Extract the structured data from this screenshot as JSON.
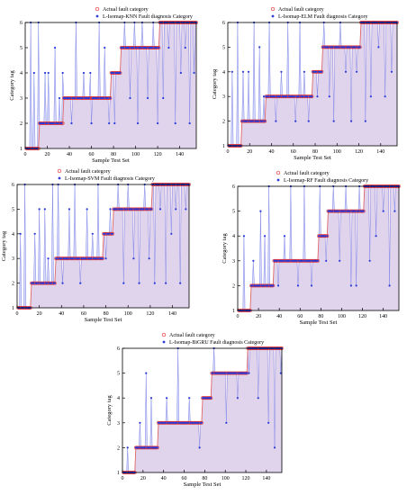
{
  "chart_data": [
    {
      "type": "scatter",
      "xlabel": "Sample Test Set",
      "ylabel": "Category tag",
      "xlim": [
        0,
        155
      ],
      "ylim": [
        1,
        6
      ],
      "xticks": [
        0,
        20,
        40,
        60,
        80,
        100,
        120,
        140
      ],
      "yticks": [
        1,
        2,
        3,
        4,
        5,
        6
      ],
      "legend_position": "top",
      "series": [
        {
          "name": "Actual fault category",
          "marker": "circle-open",
          "color": "#e03030",
          "segments": [
            [
              1,
              12,
              1
            ],
            [
              13,
              34,
              2
            ],
            [
              35,
              77,
              3
            ],
            [
              78,
              86,
              4
            ],
            [
              87,
              121,
              5
            ],
            [
              122,
              155,
              6
            ]
          ]
        },
        {
          "name": "L-Isomap-KNN Fault diagnosis Category",
          "marker": "dot",
          "color": "#2a3bd8",
          "errors": [
            [
              5,
              6
            ],
            [
              8,
              4
            ],
            [
              12,
              6
            ],
            [
              18,
              4
            ],
            [
              21,
              4
            ],
            [
              27,
              5
            ],
            [
              31,
              3
            ],
            [
              34,
              4
            ],
            [
              42,
              2
            ],
            [
              46,
              6
            ],
            [
              53,
              4
            ],
            [
              59,
              4
            ],
            [
              60,
              2
            ],
            [
              67,
              6
            ],
            [
              72,
              5
            ],
            [
              76,
              2
            ],
            [
              81,
              2
            ],
            [
              90,
              6
            ],
            [
              95,
              3
            ],
            [
              99,
              6
            ],
            [
              102,
              2
            ],
            [
              106,
              6
            ],
            [
              111,
              3
            ],
            [
              116,
              6
            ],
            [
              120,
              2
            ],
            [
              125,
              3
            ],
            [
              130,
              5
            ],
            [
              136,
              2
            ],
            [
              141,
              4
            ],
            [
              145,
              5
            ],
            [
              149,
              2
            ],
            [
              153,
              4
            ]
          ]
        }
      ]
    },
    {
      "type": "scatter",
      "xlabel": "Sample Test Set",
      "ylabel": "Category tag",
      "xlim": [
        0,
        155
      ],
      "ylim": [
        1,
        6
      ],
      "xticks": [
        0,
        20,
        40,
        60,
        80,
        100,
        120,
        140
      ],
      "yticks": [
        1,
        2,
        3,
        4,
        5,
        6
      ],
      "legend_position": "top",
      "series": [
        {
          "name": "Actual fault category",
          "marker": "circle-open",
          "color": "#e03030",
          "segments": [
            [
              1,
              12,
              1
            ],
            [
              13,
              34,
              2
            ],
            [
              35,
              77,
              3
            ],
            [
              78,
              86,
              4
            ],
            [
              87,
              121,
              5
            ],
            [
              122,
              155,
              6
            ]
          ]
        },
        {
          "name": "L-Isomap-ELM Fault diagnosis Category",
          "marker": "dot",
          "color": "#2a3bd8",
          "errors": [
            [
              4,
              4
            ],
            [
              9,
              6
            ],
            [
              14,
              4
            ],
            [
              19,
              4
            ],
            [
              24,
              6
            ],
            [
              29,
              5
            ],
            [
              33,
              3
            ],
            [
              38,
              6
            ],
            [
              44,
              2
            ],
            [
              49,
              4
            ],
            [
              55,
              6
            ],
            [
              62,
              2
            ],
            [
              66,
              6
            ],
            [
              70,
              4
            ],
            [
              74,
              2
            ],
            [
              82,
              3
            ],
            [
              88,
              6
            ],
            [
              93,
              3
            ],
            [
              97,
              2
            ],
            [
              103,
              6
            ],
            [
              108,
              4
            ],
            [
              113,
              2
            ],
            [
              118,
              4
            ],
            [
              126,
              2
            ],
            [
              131,
              3
            ],
            [
              138,
              5
            ],
            [
              144,
              3
            ],
            [
              150,
              4
            ]
          ]
        }
      ]
    },
    {
      "type": "scatter",
      "xlabel": "Sample Test Set",
      "ylabel": "Category tag",
      "xlim": [
        0,
        155
      ],
      "ylim": [
        1,
        6
      ],
      "xticks": [
        0,
        20,
        40,
        60,
        80,
        100,
        120,
        140
      ],
      "yticks": [
        1,
        2,
        3,
        4,
        5,
        6
      ],
      "legend_position": "top",
      "series": [
        {
          "name": "Actual fault category",
          "marker": "circle-open",
          "color": "#e03030",
          "segments": [
            [
              1,
              12,
              1
            ],
            [
              13,
              34,
              2
            ],
            [
              35,
              77,
              3
            ],
            [
              78,
              86,
              4
            ],
            [
              87,
              121,
              5
            ],
            [
              122,
              155,
              6
            ]
          ]
        },
        {
          "name": "L-Isomap-SVM Fault diagnosis Category",
          "marker": "dot",
          "color": "#2a3bd8",
          "errors": [
            [
              3,
              4
            ],
            [
              7,
              6
            ],
            [
              16,
              4
            ],
            [
              20,
              5
            ],
            [
              25,
              5
            ],
            [
              28,
              3
            ],
            [
              32,
              6
            ],
            [
              37,
              6
            ],
            [
              41,
              2
            ],
            [
              47,
              5
            ],
            [
              52,
              6
            ],
            [
              57,
              2
            ],
            [
              63,
              5
            ],
            [
              68,
              4
            ],
            [
              73,
              6
            ],
            [
              80,
              3
            ],
            [
              84,
              5
            ],
            [
              91,
              6
            ],
            [
              96,
              2
            ],
            [
              100,
              6
            ],
            [
              105,
              3
            ],
            [
              110,
              2
            ],
            [
              115,
              6
            ],
            [
              119,
              3
            ],
            [
              124,
              2
            ],
            [
              129,
              5
            ],
            [
              134,
              2
            ],
            [
              139,
              4
            ],
            [
              143,
              5
            ],
            [
              147,
              2
            ],
            [
              152,
              5
            ]
          ]
        }
      ]
    },
    {
      "type": "scatter",
      "xlabel": "Sample Test Set",
      "ylabel": "Category tag",
      "xlim": [
        0,
        155
      ],
      "ylim": [
        1,
        6
      ],
      "xticks": [
        0,
        20,
        40,
        60,
        80,
        100,
        120,
        140
      ],
      "yticks": [
        1,
        2,
        3,
        4,
        5,
        6
      ],
      "legend_position": "top",
      "series": [
        {
          "name": "Actual fault category",
          "marker": "circle-open",
          "color": "#e03030",
          "segments": [
            [
              1,
              12,
              1
            ],
            [
              13,
              34,
              2
            ],
            [
              35,
              77,
              3
            ],
            [
              78,
              86,
              4
            ],
            [
              87,
              121,
              5
            ],
            [
              122,
              155,
              6
            ]
          ]
        },
        {
          "name": "L-Isomap-RF Fault diagnosis Category",
          "marker": "dot",
          "color": "#2a3bd8",
          "errors": [
            [
              6,
              4
            ],
            [
              15,
              3
            ],
            [
              22,
              5
            ],
            [
              26,
              4
            ],
            [
              30,
              6
            ],
            [
              39,
              2
            ],
            [
              45,
              4
            ],
            [
              51,
              6
            ],
            [
              58,
              2
            ],
            [
              64,
              6
            ],
            [
              71,
              2
            ],
            [
              79,
              6
            ],
            [
              85,
              3
            ],
            [
              92,
              6
            ],
            [
              98,
              3
            ],
            [
              104,
              6
            ],
            [
              109,
              2
            ],
            [
              114,
              2
            ],
            [
              117,
              6
            ],
            [
              127,
              3
            ],
            [
              133,
              4
            ],
            [
              140,
              5
            ],
            [
              146,
              2
            ],
            [
              151,
              5
            ]
          ]
        }
      ]
    },
    {
      "type": "scatter",
      "xlabel": "Sample Test Set",
      "ylabel": "Category tag",
      "xlim": [
        0,
        155
      ],
      "ylim": [
        1,
        6
      ],
      "xticks": [
        0,
        20,
        40,
        60,
        80,
        100,
        120,
        140
      ],
      "yticks": [
        1,
        2,
        3,
        4,
        5,
        6
      ],
      "legend_position": "top",
      "series": [
        {
          "name": "Actual fault category",
          "marker": "circle-open",
          "color": "#e03030",
          "segments": [
            [
              1,
              12,
              1
            ],
            [
              13,
              34,
              2
            ],
            [
              35,
              77,
              3
            ],
            [
              78,
              86,
              4
            ],
            [
              87,
              121,
              5
            ],
            [
              122,
              155,
              6
            ]
          ]
        },
        {
          "name": "L-Isomap-BiGRU Fault diagnosis Category",
          "marker": "dot",
          "color": "#2a3bd8",
          "errors": [
            [
              5,
              2
            ],
            [
              17,
              3
            ],
            [
              23,
              5
            ],
            [
              28,
              4
            ],
            [
              43,
              4
            ],
            [
              54,
              6
            ],
            [
              65,
              4
            ],
            [
              75,
              2
            ],
            [
              89,
              6
            ],
            [
              101,
              3
            ],
            [
              112,
              4
            ],
            [
              123,
              5
            ],
            [
              132,
              4
            ],
            [
              142,
              3
            ],
            [
              148,
              2
            ],
            [
              154,
              5
            ]
          ]
        }
      ]
    }
  ]
}
